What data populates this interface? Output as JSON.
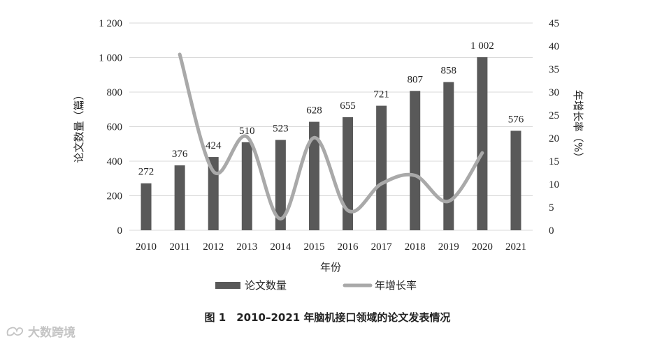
{
  "chart_data": {
    "type": "bar+line",
    "categories": [
      "2010",
      "2011",
      "2012",
      "2013",
      "2014",
      "2015",
      "2016",
      "2017",
      "2018",
      "2019",
      "2020",
      "2021"
    ],
    "series": [
      {
        "name": "论文数量",
        "type": "bar",
        "axis": "left",
        "color": "#595959",
        "values": [
          272,
          376,
          424,
          510,
          523,
          628,
          655,
          721,
          807,
          858,
          1002,
          576
        ],
        "labels": [
          "272",
          "376",
          "424",
          "510",
          "523",
          "628",
          "655",
          "721",
          "807",
          "858",
          "1 002",
          "576"
        ]
      },
      {
        "name": "年增长率",
        "type": "line",
        "axis": "right",
        "color": "#a9a9a9",
        "values": [
          null,
          38.2,
          12.8,
          20.3,
          2.5,
          20.1,
          4.3,
          10.1,
          11.9,
          6.3,
          16.8,
          null
        ]
      }
    ],
    "xlabel": "年份",
    "ylabel_left": "论文数量（篇）",
    "ylabel_right": "年增长率（%）",
    "ylim_left": [
      0,
      1200
    ],
    "ylim_right": [
      0,
      45
    ],
    "yticks_left": [
      0,
      200,
      400,
      600,
      800,
      1000,
      1200
    ],
    "yticks_left_labels": [
      "0",
      "200",
      "400",
      "600",
      "800",
      "1 000",
      "1 200"
    ],
    "yticks_right": [
      0,
      5,
      10,
      15,
      20,
      25,
      30,
      35,
      40,
      45
    ],
    "grid": "horizontal",
    "legend_position": "bottom"
  },
  "caption": "图 1　2010–2021 年脑机接口领域的论文发表情况",
  "watermark": "大数跨境"
}
